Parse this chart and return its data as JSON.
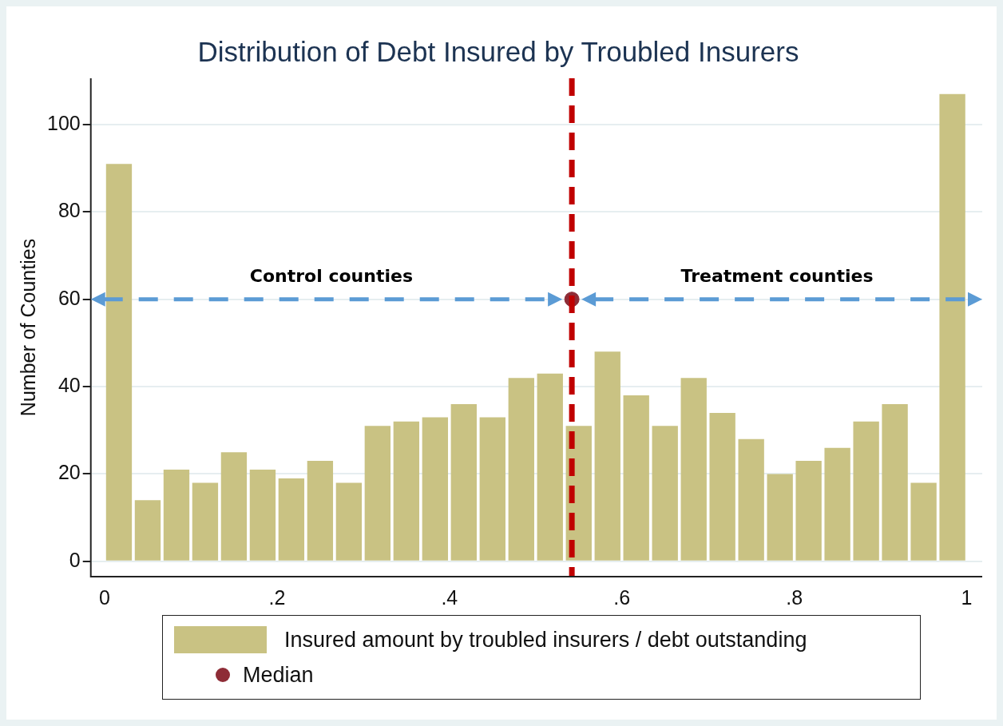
{
  "chart_data": {
    "type": "histogram",
    "title": "Distribution of Debt Insured by Troubled Insurers",
    "ylabel": "Number of Counties",
    "bins": [
      0,
      0.0333,
      0.0667,
      0.1,
      0.1333,
      0.1667,
      0.2,
      0.2333,
      0.2667,
      0.3,
      0.3333,
      0.3667,
      0.4,
      0.4333,
      0.4667,
      0.5,
      0.5333,
      0.5667,
      0.6,
      0.6333,
      0.6667,
      0.7,
      0.7333,
      0.7667,
      0.8,
      0.8333,
      0.8667,
      0.9,
      0.9333,
      0.9667,
      1
    ],
    "series": [
      {
        "name": "Insured amount by troubled insurers / debt outstanding",
        "color": "#c9c283",
        "values": [
          91,
          14,
          21,
          18,
          25,
          21,
          19,
          23,
          18,
          31,
          32,
          33,
          36,
          33,
          42,
          43,
          31,
          48,
          38,
          31,
          42,
          34,
          28,
          20,
          23,
          26,
          32,
          36,
          18,
          107
        ]
      },
      {
        "name": "Median",
        "type": "scatter",
        "color": "#8e2c36",
        "marker": "circle",
        "x": [
          0.542
        ],
        "values": [
          60
        ]
      }
    ],
    "xlim": [
      -0.016,
      1.018
    ],
    "xticks": [
      0,
      {
        "value": 0.2,
        "label": ".2"
      },
      {
        "value": 0.4,
        "label": ".4"
      },
      {
        "value": 0.6,
        "label": ".6"
      },
      {
        "value": 0.8,
        "label": ".8"
      },
      1
    ],
    "ylim": [
      -3.5,
      110.6
    ],
    "yticks": [
      0,
      20,
      40,
      60,
      80,
      100
    ],
    "grid": "y",
    "legend": "bottom",
    "ref_lines": [
      {
        "axis": "x",
        "value": 0.542,
        "color": "#c00000",
        "line_style": "dashed"
      }
    ],
    "annotations": [
      "Control counties",
      "Treatment counties"
    ]
  }
}
